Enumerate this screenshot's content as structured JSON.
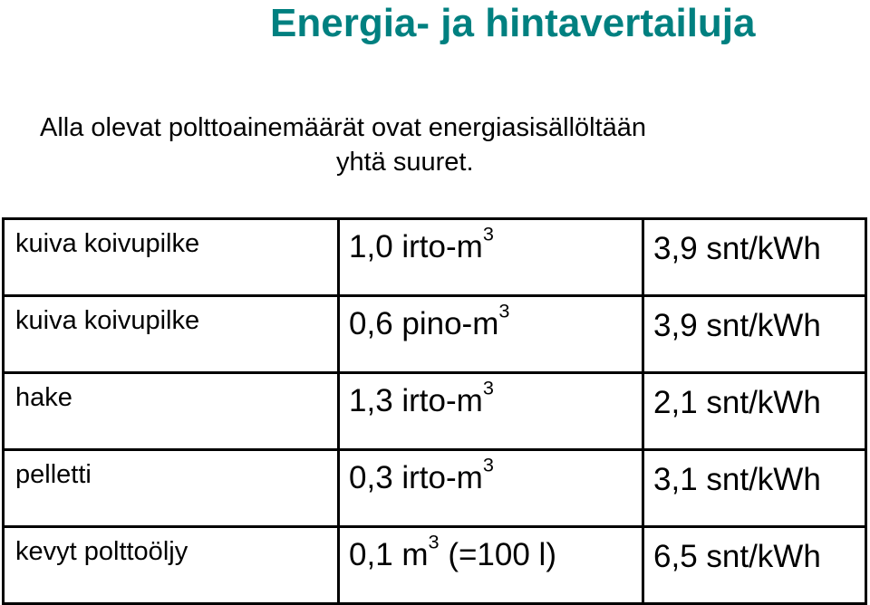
{
  "slide": {
    "title": "Energia- ja hintavertailuja",
    "title_color": "#008080",
    "intro_line1": "Alla olevat polttoainemäärät ovat energiasisällöltään",
    "intro_line2": "yhtä suuret."
  },
  "table": {
    "rows": [
      {
        "fuel": "kuiva koivupilke",
        "amount_pre": "1,0 irto-m",
        "amount_sup": "3",
        "amount_post": "",
        "price": "3,9 snt/kWh"
      },
      {
        "fuel": "kuiva koivupilke",
        "amount_pre": "0,6 pino-m",
        "amount_sup": "3",
        "amount_post": "",
        "price": "3,9 snt/kWh"
      },
      {
        "fuel": "hake",
        "amount_pre": "1,3 irto-m",
        "amount_sup": "3",
        "amount_post": "",
        "price": "2,1 snt/kWh"
      },
      {
        "fuel": "pelletti",
        "amount_pre": "0,3 irto-m",
        "amount_sup": "3",
        "amount_post": "",
        "price": "3,1 snt/kWh"
      },
      {
        "fuel": "kevyt polttoöljy",
        "amount_pre": "0,1 m",
        "amount_sup": "3",
        "amount_post": " (=100 l)",
        "price": "6,5 snt/kWh"
      }
    ]
  }
}
